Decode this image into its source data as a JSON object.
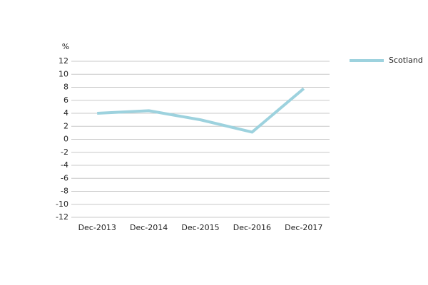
{
  "chart_data": {
    "type": "line",
    "y_axis_label": "%",
    "categories": [
      "Dec-2013",
      "Dec-2014",
      "Dec-2015",
      "Dec-2016",
      "Dec-2017"
    ],
    "series": [
      {
        "name": "Scotland",
        "color": "#9dd2de",
        "values": [
          4,
          4.4,
          3,
          1.1,
          7.8
        ]
      }
    ],
    "ylim": [
      -12,
      12
    ],
    "yticks": [
      -12,
      -10,
      -8,
      -6,
      -4,
      -2,
      0,
      2,
      4,
      6,
      8,
      10,
      12
    ],
    "grid": true,
    "legend": "top-right"
  }
}
